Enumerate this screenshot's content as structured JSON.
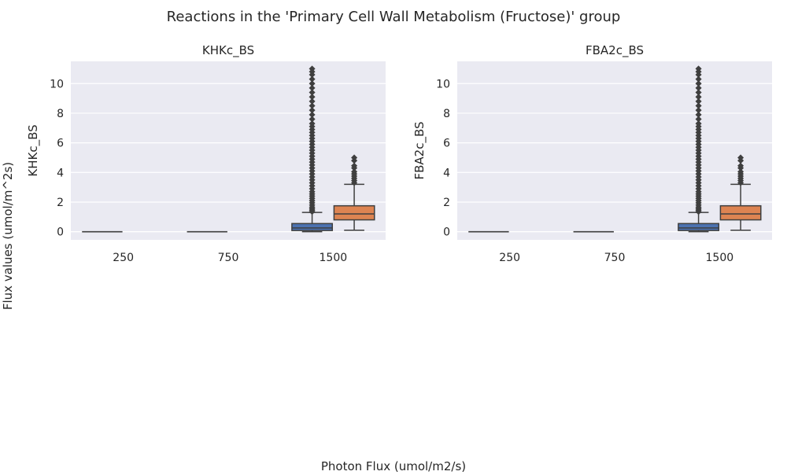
{
  "figure": {
    "suptitle": "Reactions in the 'Primary Cell Wall Metabolism (Fructose)' group",
    "supxlabel": "Photon Flux (umol/m2/s)",
    "supylabel": "Flux values (umol/m^2s)"
  },
  "colors": {
    "background": "#eaeaf2",
    "grid": "#ffffff",
    "line": "#3f3f3f",
    "series_a": "#4c72b0",
    "series_b": "#dd8452"
  },
  "chart_data": [
    {
      "type": "box",
      "title": "KHKc_BS",
      "xlabel": "",
      "ylabel": "KHKc_BS",
      "categories": [
        "250",
        "750",
        "1500"
      ],
      "ylim": [
        -0.55,
        11.5
      ],
      "yticks": [
        0,
        2,
        4,
        6,
        8,
        10
      ],
      "grid": true,
      "legend": "none",
      "series": [
        {
          "boxes": [
            {
              "category": "250",
              "min": 0,
              "q1": 0,
              "median": 0,
              "q3": 0,
              "max": 0,
              "outliers": []
            },
            {
              "category": "750",
              "min": 0,
              "q1": 0,
              "median": 0,
              "q3": 0,
              "max": 0,
              "outliers": []
            },
            {
              "category": "1500",
              "min": 0.0,
              "q1": 0.08,
              "median": 0.25,
              "q3": 0.55,
              "max": 1.3,
              "outliers": [
                1.35,
                1.45,
                1.55,
                1.65,
                1.8,
                1.95,
                2.1,
                2.25,
                2.4,
                2.55,
                2.7,
                2.9,
                3.1,
                3.3,
                3.5,
                3.7,
                3.9,
                4.1,
                4.3,
                4.5,
                4.7,
                4.9,
                5.1,
                5.3,
                5.5,
                5.7,
                5.9,
                6.1,
                6.3,
                6.5,
                6.7,
                6.9,
                7.1,
                7.3,
                7.6,
                7.9,
                8.2,
                8.5,
                8.8,
                9.1,
                9.4,
                9.7,
                10.0,
                10.3,
                10.6,
                10.8,
                11.0
              ]
            }
          ]
        },
        {
          "boxes": [
            {
              "category": "1500",
              "min": 0.1,
              "q1": 0.8,
              "median": 1.2,
              "q3": 1.75,
              "max": 3.2,
              "outliers": [
                3.3,
                3.45,
                3.6,
                3.75,
                3.9,
                4.05,
                4.3,
                4.45,
                4.8,
                5.0
              ]
            }
          ]
        }
      ]
    },
    {
      "type": "box",
      "title": "FBA2c_BS",
      "xlabel": "",
      "ylabel": "FBA2c_BS",
      "categories": [
        "250",
        "750",
        "1500"
      ],
      "ylim": [
        -0.55,
        11.5
      ],
      "yticks": [
        0,
        2,
        4,
        6,
        8,
        10
      ],
      "grid": true,
      "legend": "none",
      "series": [
        {
          "boxes": [
            {
              "category": "250",
              "min": 0,
              "q1": 0,
              "median": 0,
              "q3": 0,
              "max": 0,
              "outliers": []
            },
            {
              "category": "750",
              "min": 0,
              "q1": 0,
              "median": 0,
              "q3": 0,
              "max": 0,
              "outliers": []
            },
            {
              "category": "1500",
              "min": 0.0,
              "q1": 0.08,
              "median": 0.25,
              "q3": 0.55,
              "max": 1.3,
              "outliers": [
                1.35,
                1.45,
                1.55,
                1.65,
                1.8,
                1.95,
                2.1,
                2.25,
                2.4,
                2.55,
                2.7,
                2.9,
                3.1,
                3.3,
                3.5,
                3.7,
                3.9,
                4.1,
                4.3,
                4.5,
                4.7,
                4.9,
                5.1,
                5.3,
                5.5,
                5.7,
                5.9,
                6.1,
                6.3,
                6.5,
                6.7,
                6.9,
                7.1,
                7.3,
                7.6,
                7.9,
                8.2,
                8.5,
                8.8,
                9.1,
                9.4,
                9.7,
                10.0,
                10.3,
                10.6,
                10.8,
                11.0
              ]
            }
          ]
        },
        {
          "boxes": [
            {
              "category": "1500",
              "min": 0.1,
              "q1": 0.8,
              "median": 1.2,
              "q3": 1.75,
              "max": 3.2,
              "outliers": [
                3.3,
                3.45,
                3.6,
                3.75,
                3.9,
                4.05,
                4.3,
                4.45,
                4.8,
                5.0
              ]
            }
          ]
        }
      ]
    }
  ]
}
